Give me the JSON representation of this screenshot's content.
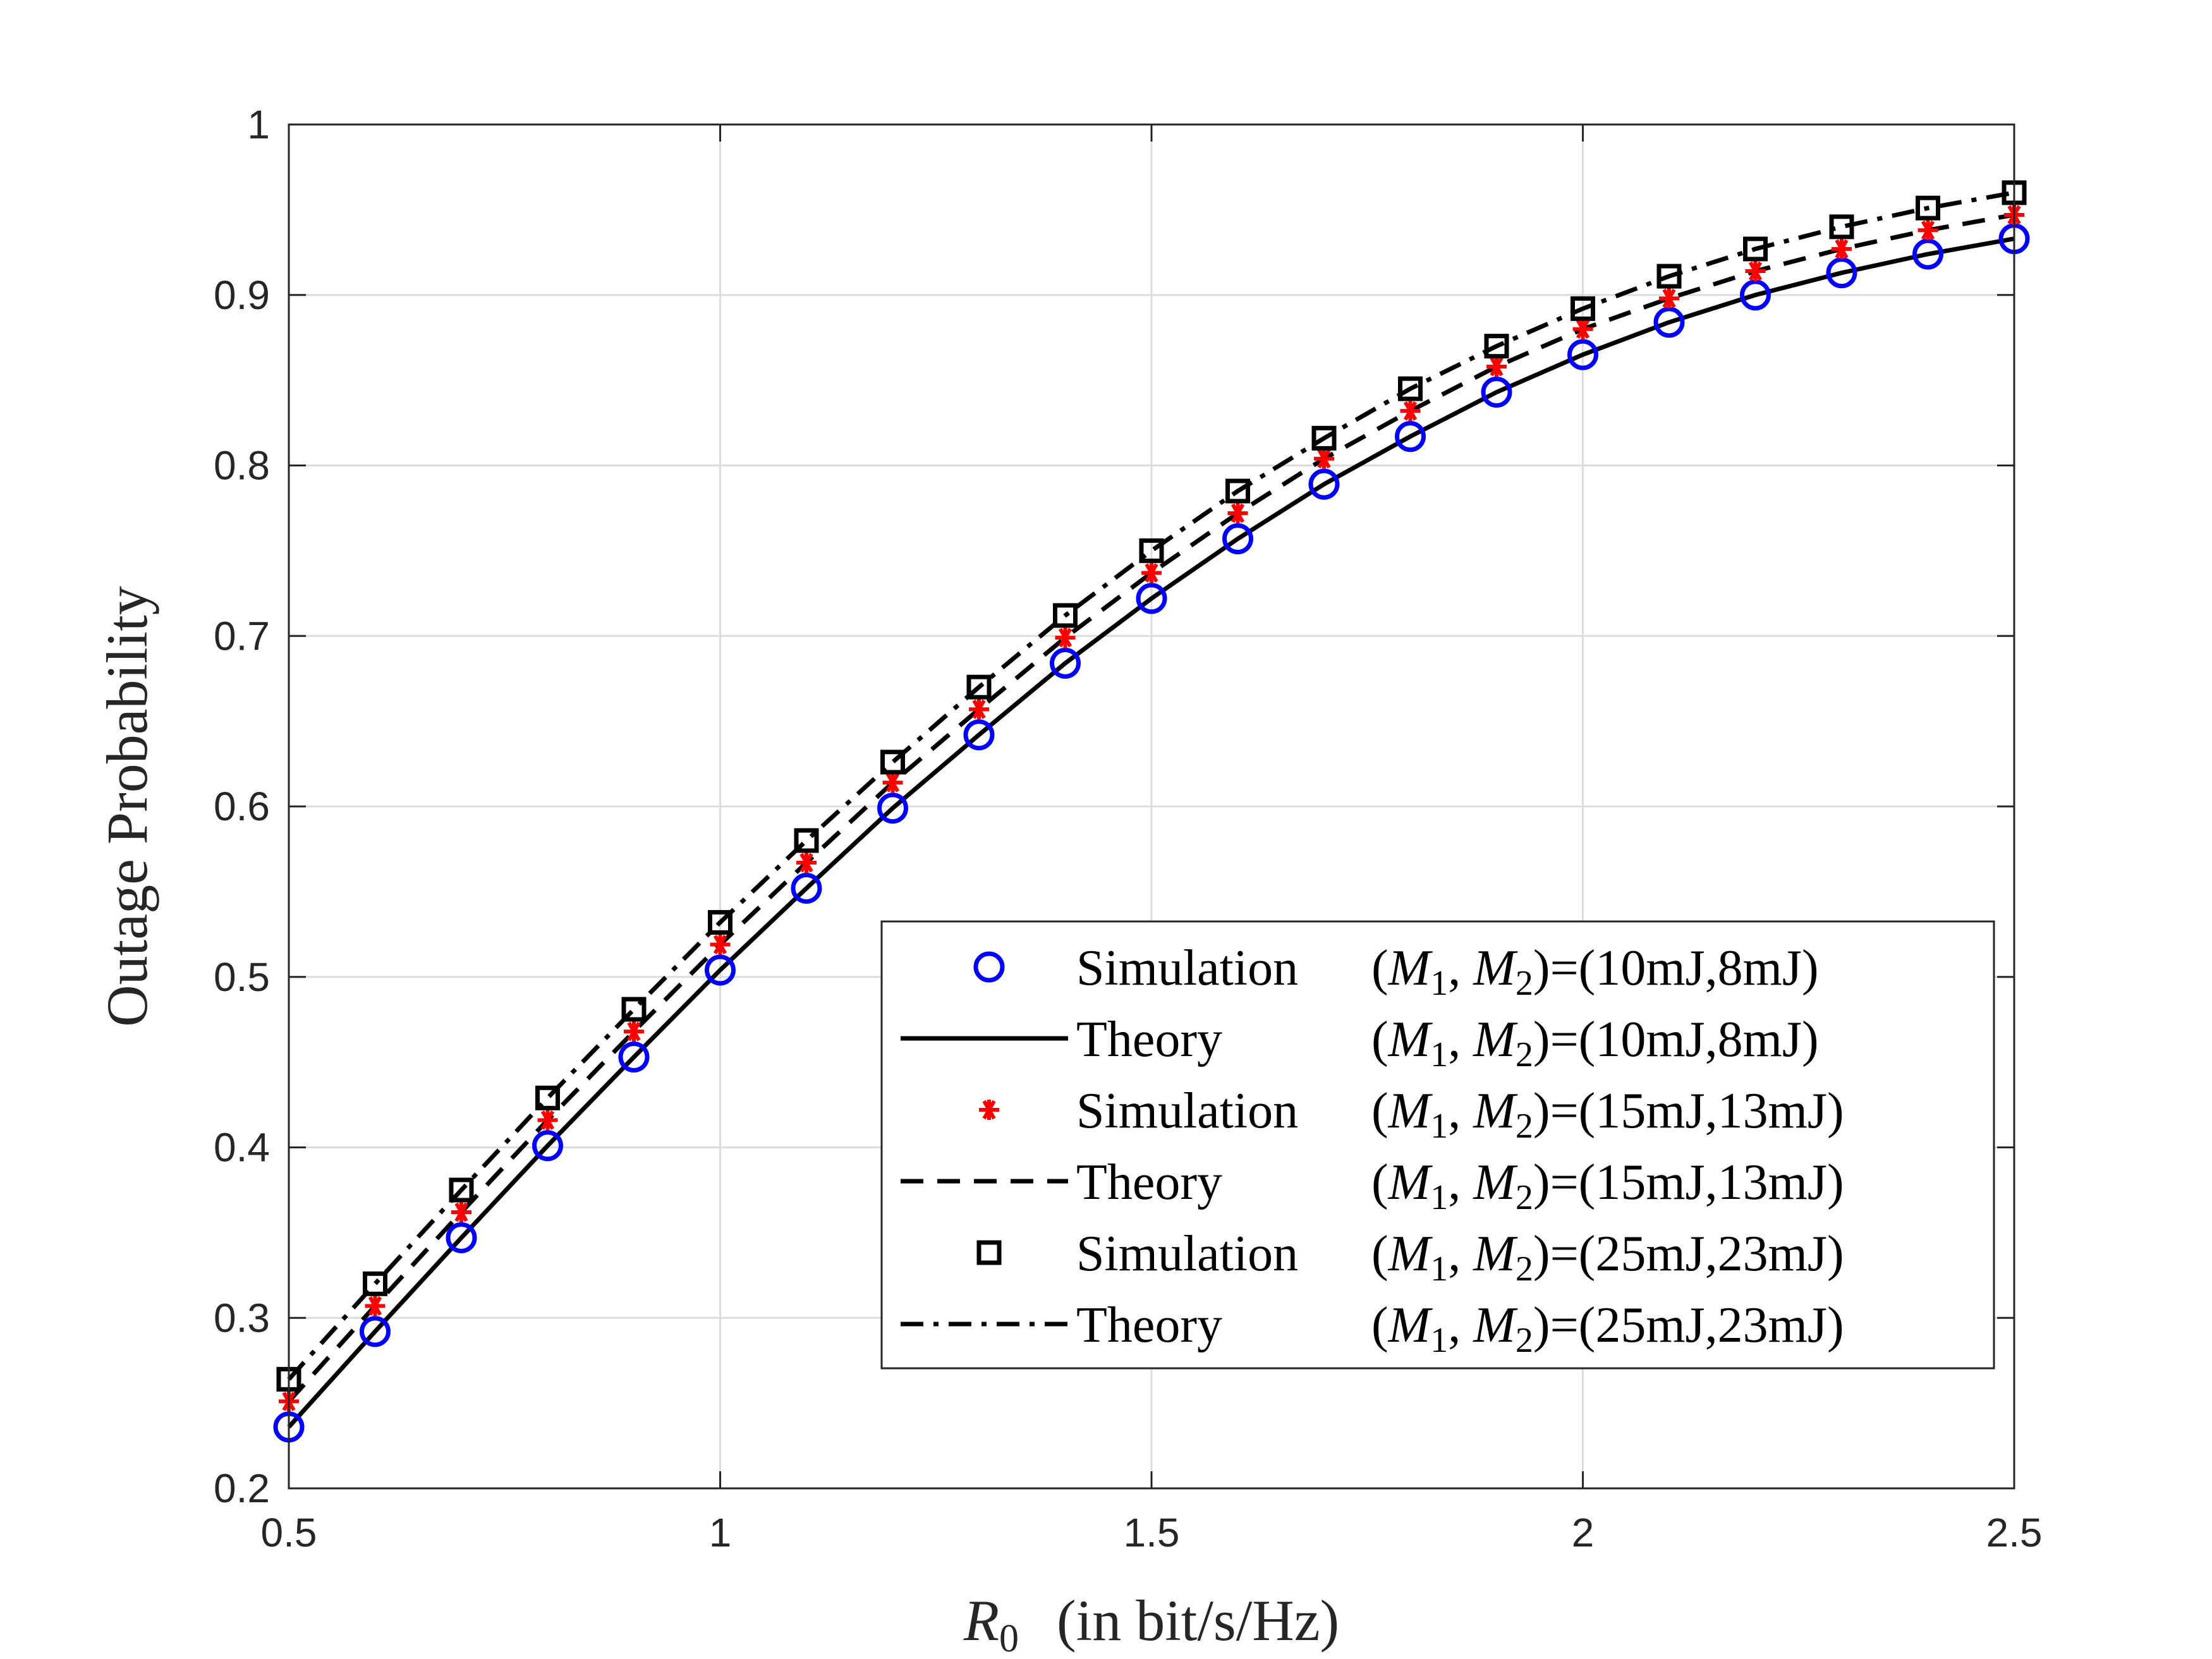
{
  "chart_data": {
    "type": "line",
    "title": "",
    "xlabel_symbol": "R",
    "xlabel_sub": "0",
    "xlabel_rest": "(in bit/s/Hz)",
    "ylabel": "Outage Probability",
    "xlim": [
      0.5,
      2.5
    ],
    "ylim": [
      0.2,
      1.0
    ],
    "grid": true,
    "legend_position": "lower-right",
    "xticks": [
      0.5,
      1,
      1.5,
      2,
      2.5
    ],
    "xtick_labels": [
      "0.5",
      "1",
      "1.5",
      "2",
      "2.5"
    ],
    "yticks": [
      0.2,
      0.3,
      0.4,
      0.5,
      0.6,
      0.7,
      0.8,
      0.9,
      1.0
    ],
    "ytick_labels": [
      "0.2",
      "0.3",
      "0.4",
      "0.5",
      "0.6",
      "0.7",
      "0.8",
      "0.9",
      "1"
    ],
    "x": [
      0.5,
      0.6,
      0.7,
      0.8,
      0.9,
      1.0,
      1.1,
      1.2,
      1.3,
      1.4,
      1.5,
      1.6,
      1.7,
      1.8,
      1.9,
      2.0,
      2.1,
      2.2,
      2.3,
      2.4,
      2.5
    ],
    "series": [
      {
        "name": "Simulation (M1, M2)=(10mJ,8mJ)",
        "kind": "markers",
        "marker": "circle",
        "color": "#0000ff",
        "values": [
          0.236,
          0.292,
          0.347,
          0.401,
          0.453,
          0.504,
          0.552,
          0.599,
          0.642,
          0.684,
          0.722,
          0.757,
          0.789,
          0.817,
          0.843,
          0.865,
          0.884,
          0.9,
          0.913,
          0.924,
          0.933
        ]
      },
      {
        "name": "Theory (M1, M2)=(10mJ,8mJ)",
        "kind": "line",
        "dash": "solid",
        "color": "#000000",
        "values": [
          0.236,
          0.292,
          0.347,
          0.401,
          0.453,
          0.504,
          0.552,
          0.599,
          0.642,
          0.684,
          0.722,
          0.757,
          0.789,
          0.817,
          0.843,
          0.865,
          0.884,
          0.9,
          0.913,
          0.924,
          0.933
        ]
      },
      {
        "name": "Simulation (M1, M2)=(15mJ,13mJ)",
        "kind": "markers",
        "marker": "asterisk",
        "color": "#ff0000",
        "values": [
          0.251,
          0.307,
          0.362,
          0.416,
          0.468,
          0.519,
          0.567,
          0.614,
          0.657,
          0.699,
          0.737,
          0.772,
          0.804,
          0.832,
          0.858,
          0.88,
          0.898,
          0.914,
          0.927,
          0.938,
          0.947
        ]
      },
      {
        "name": "Theory (M1, M2)=(15mJ,13mJ)",
        "kind": "line",
        "dash": "dashed",
        "color": "#000000",
        "values": [
          0.251,
          0.307,
          0.362,
          0.416,
          0.468,
          0.519,
          0.567,
          0.614,
          0.657,
          0.699,
          0.737,
          0.772,
          0.804,
          0.832,
          0.858,
          0.88,
          0.898,
          0.914,
          0.927,
          0.938,
          0.947
        ]
      },
      {
        "name": "Simulation (M1, M2)=(25mJ,23mJ)",
        "kind": "markers",
        "marker": "square",
        "color": "#000000",
        "values": [
          0.264,
          0.32,
          0.375,
          0.429,
          0.481,
          0.532,
          0.58,
          0.626,
          0.67,
          0.712,
          0.75,
          0.785,
          0.816,
          0.845,
          0.87,
          0.892,
          0.911,
          0.927,
          0.94,
          0.951,
          0.96
        ]
      },
      {
        "name": "Theory (M1, M2)=(25mJ,23mJ)",
        "kind": "line",
        "dash": "dashdot",
        "color": "#000000",
        "values": [
          0.264,
          0.32,
          0.375,
          0.429,
          0.481,
          0.532,
          0.58,
          0.626,
          0.67,
          0.712,
          0.75,
          0.785,
          0.816,
          0.845,
          0.87,
          0.892,
          0.911,
          0.927,
          0.94,
          0.951,
          0.96
        ]
      }
    ]
  },
  "legend": {
    "entries": [
      {
        "label": "Simulation",
        "m1": "M",
        "m2": "M",
        "sub1": "1",
        "sub2": "2",
        "value": "=(10mJ,8mJ)"
      },
      {
        "label": "Theory",
        "m1": "M",
        "m2": "M",
        "sub1": "1",
        "sub2": "2",
        "value": "=(10mJ,8mJ)"
      },
      {
        "label": "Simulation",
        "m1": "M",
        "m2": "M",
        "sub1": "1",
        "sub2": "2",
        "value": "=(15mJ,13mJ)"
      },
      {
        "label": "Theory",
        "m1": "M",
        "m2": "M",
        "sub1": "1",
        "sub2": "2",
        "value": "=(15mJ,13mJ)"
      },
      {
        "label": "Simulation",
        "m1": "M",
        "m2": "M",
        "sub1": "1",
        "sub2": "2",
        "value": "=(25mJ,23mJ)"
      },
      {
        "label": "Theory",
        "m1": "M",
        "m2": "M",
        "sub1": "1",
        "sub2": "2",
        "value": "=(25mJ,23mJ)"
      }
    ]
  }
}
